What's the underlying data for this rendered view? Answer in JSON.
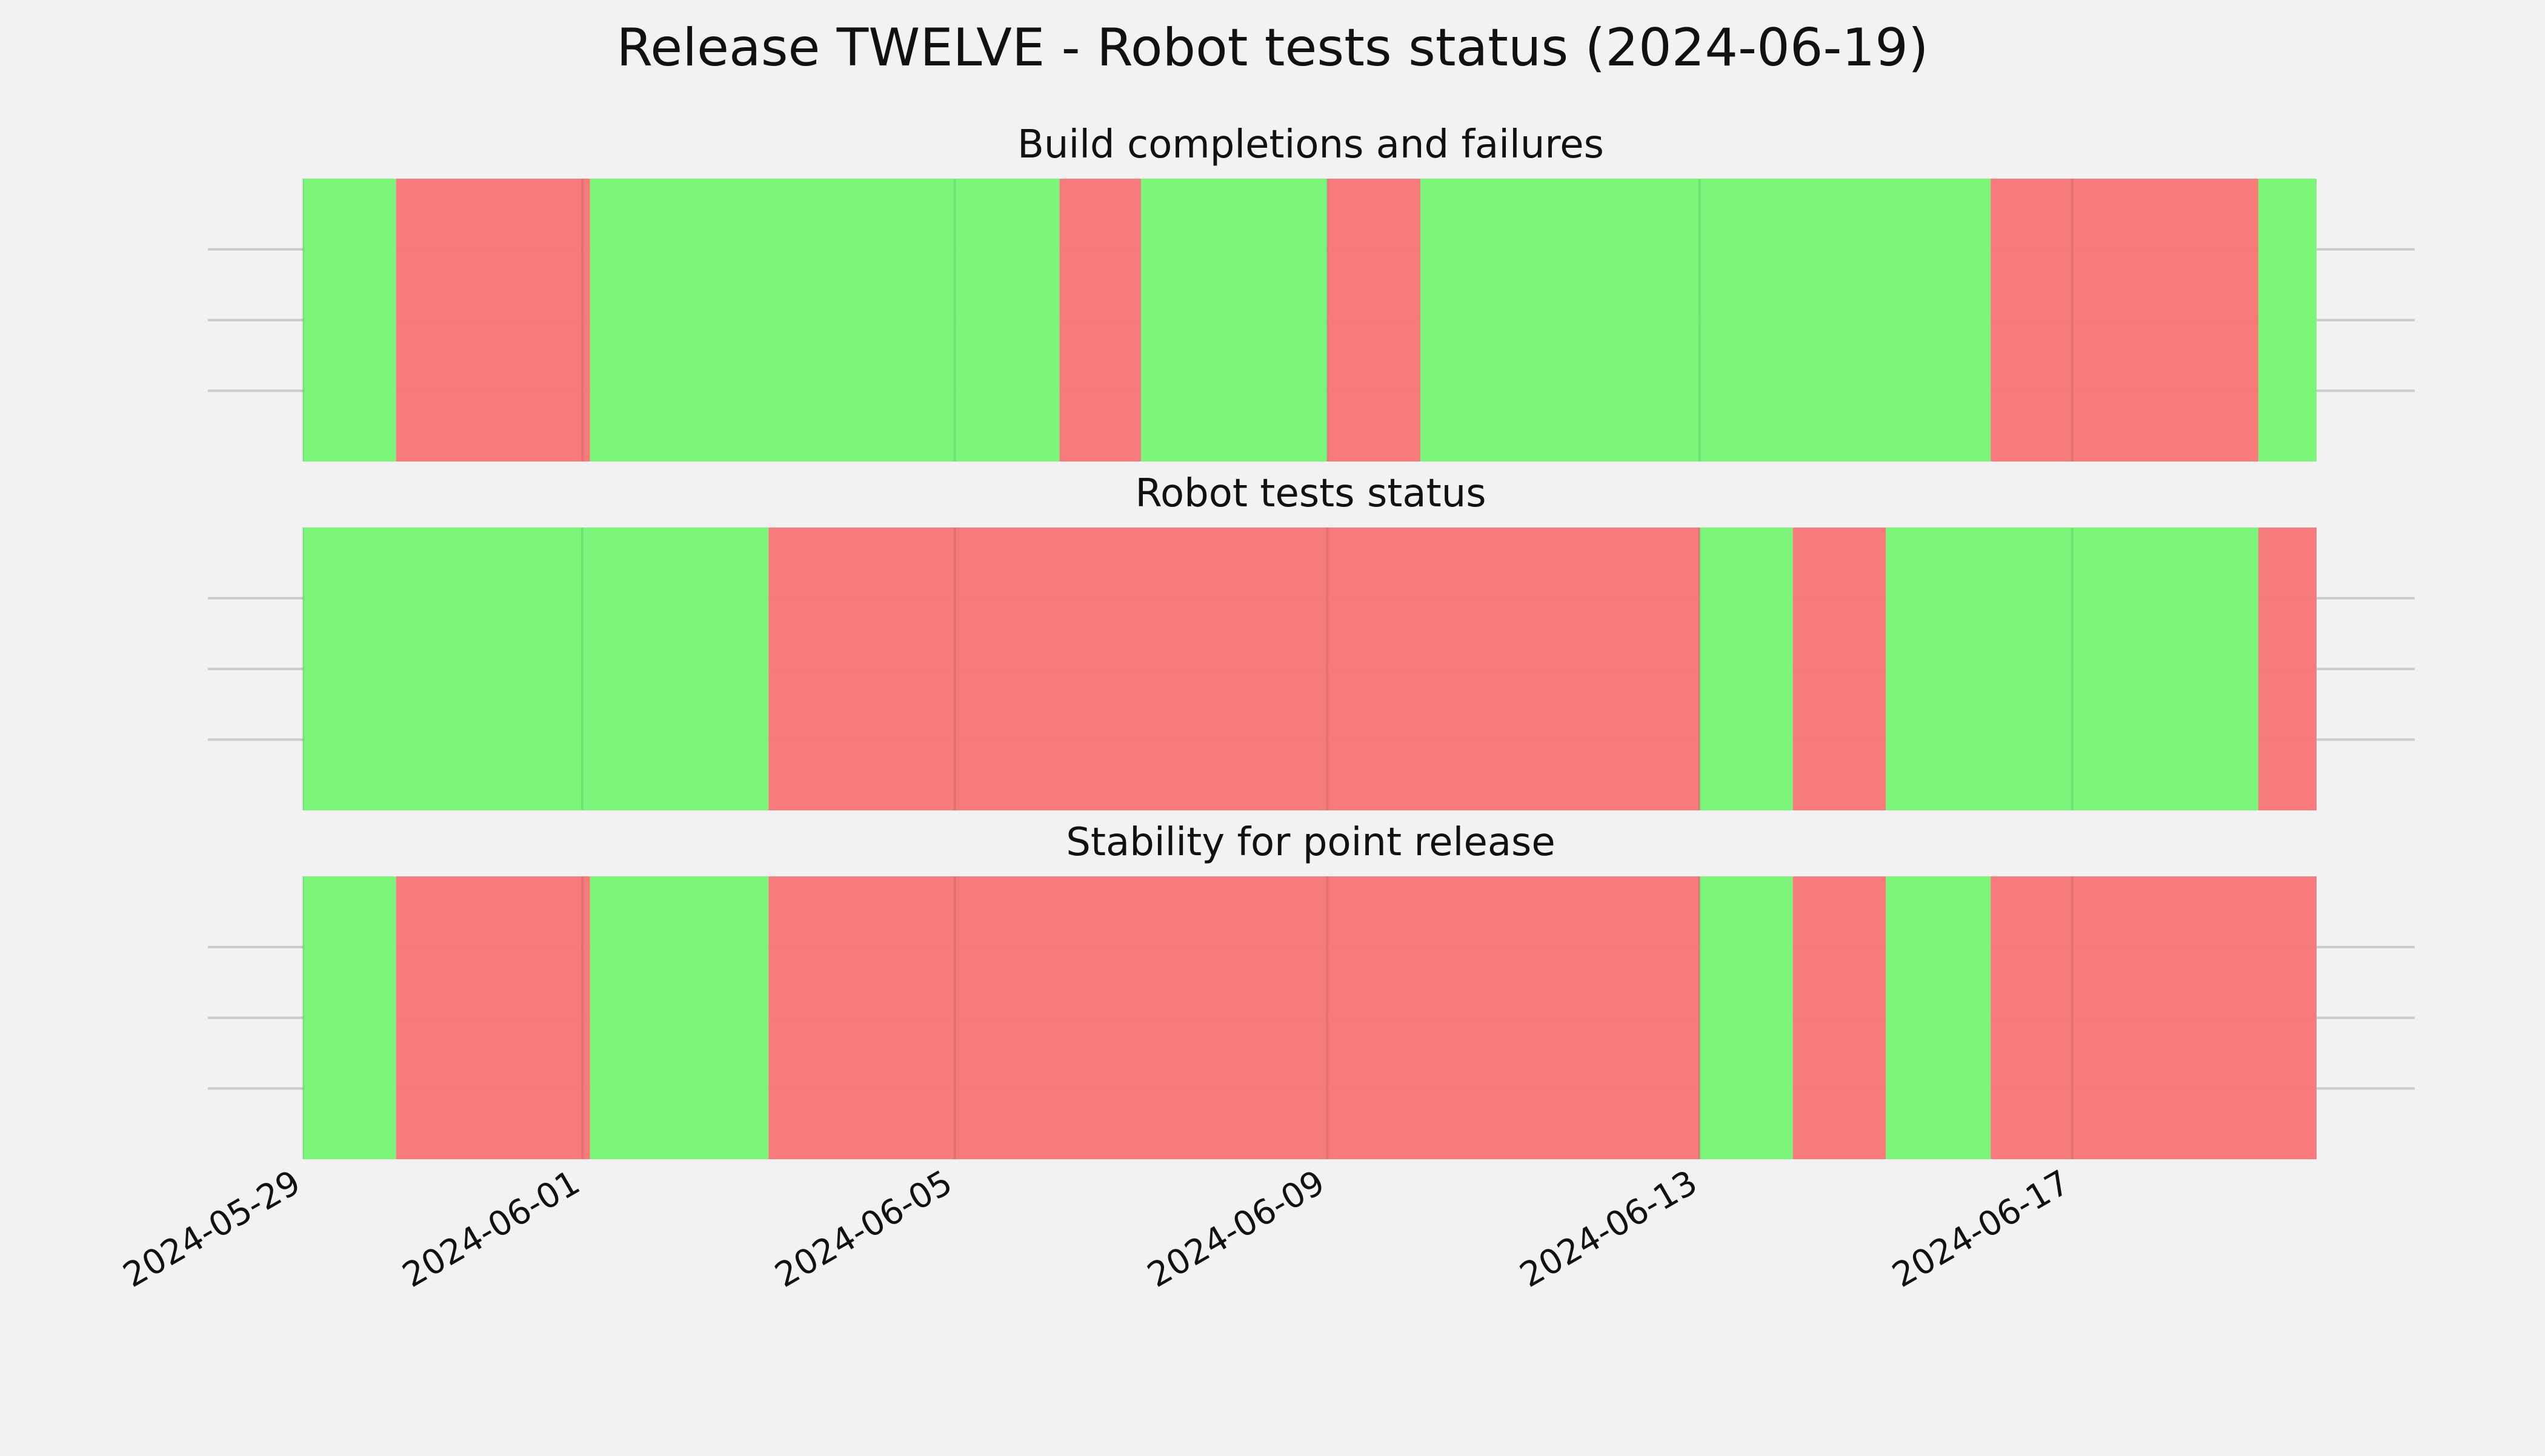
{
  "chart_data": {
    "type": "timeline",
    "title": "Release TWELVE - Robot tests status (2024-06-19)",
    "x_type": "date",
    "xlim": [
      "2024-05-29",
      "2024-06-19T15:00"
    ],
    "x_ticks": [
      "2024-05-29",
      "2024-06-01",
      "2024-06-05",
      "2024-06-09",
      "2024-06-13",
      "2024-06-17"
    ],
    "grid": true,
    "colors": {
      "pass": "#77f677",
      "fail": "#f77777",
      "background": "#f2f2f2",
      "grid": "#cbcbcb"
    },
    "panels": [
      {
        "title": "Build completions and failures",
        "segments": [
          {
            "start": "2024-05-29T00:00",
            "end": "2024-05-30T00:00",
            "status": "pass"
          },
          {
            "start": "2024-05-30T00:00",
            "end": "2024-06-01T02:00",
            "status": "fail"
          },
          {
            "start": "2024-06-01T02:00",
            "end": "2024-06-06T03:00",
            "status": "pass"
          },
          {
            "start": "2024-06-06T03:00",
            "end": "2024-06-07T00:00",
            "status": "fail"
          },
          {
            "start": "2024-06-07T00:00",
            "end": "2024-06-09T00:00",
            "status": "pass"
          },
          {
            "start": "2024-06-09T00:00",
            "end": "2024-06-10T00:00",
            "status": "fail"
          },
          {
            "start": "2024-06-10T00:00",
            "end": "2024-06-16T03:00",
            "status": "pass"
          },
          {
            "start": "2024-06-16T03:00",
            "end": "2024-06-19T00:00",
            "status": "fail"
          },
          {
            "start": "2024-06-19T00:00",
            "end": "2024-06-19T15:00",
            "status": "pass"
          }
        ]
      },
      {
        "title": "Robot tests status",
        "segments": [
          {
            "start": "2024-05-29T00:00",
            "end": "2024-06-03T00:00",
            "status": "pass"
          },
          {
            "start": "2024-06-03T00:00",
            "end": "2024-06-13T00:00",
            "status": "fail"
          },
          {
            "start": "2024-06-13T00:00",
            "end": "2024-06-14T00:00",
            "status": "pass"
          },
          {
            "start": "2024-06-14T00:00",
            "end": "2024-06-15T00:00",
            "status": "fail"
          },
          {
            "start": "2024-06-15T00:00",
            "end": "2024-06-19T00:00",
            "status": "pass"
          },
          {
            "start": "2024-06-19T00:00",
            "end": "2024-06-19T15:00",
            "status": "fail"
          }
        ]
      },
      {
        "title": "Stability for point release",
        "segments": [
          {
            "start": "2024-05-29T00:00",
            "end": "2024-05-30T00:00",
            "status": "pass"
          },
          {
            "start": "2024-05-30T00:00",
            "end": "2024-06-01T02:00",
            "status": "fail"
          },
          {
            "start": "2024-06-01T02:00",
            "end": "2024-06-03T00:00",
            "status": "pass"
          },
          {
            "start": "2024-06-03T00:00",
            "end": "2024-06-13T00:00",
            "status": "fail"
          },
          {
            "start": "2024-06-13T00:00",
            "end": "2024-06-14T00:00",
            "status": "pass"
          },
          {
            "start": "2024-06-14T00:00",
            "end": "2024-06-15T00:00",
            "status": "fail"
          },
          {
            "start": "2024-06-15T00:00",
            "end": "2024-06-16T03:00",
            "status": "pass"
          },
          {
            "start": "2024-06-16T03:00",
            "end": "2024-06-19T15:00",
            "status": "fail"
          }
        ]
      }
    ]
  }
}
